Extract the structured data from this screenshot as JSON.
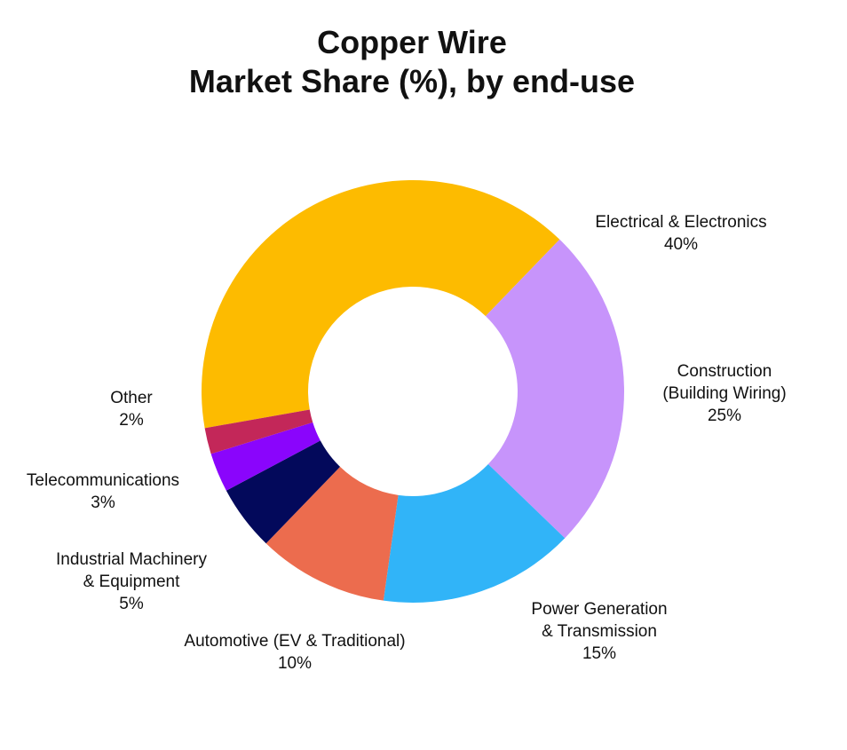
{
  "chart_data": {
    "type": "pie",
    "donut": true,
    "title_lines": [
      "Copper Wire",
      "Market Share (%), by end-use"
    ],
    "slices": [
      {
        "label_lines": [
          "Electrical & Electronics"
        ],
        "value": 40,
        "value_text": "40%",
        "color": "#FDBB00"
      },
      {
        "label_lines": [
          "Construction",
          "(Building Wiring)"
        ],
        "value": 25,
        "value_text": "25%",
        "color": "#C794FB"
      },
      {
        "label_lines": [
          "Power Generation",
          "& Transmission"
        ],
        "value": 15,
        "value_text": "15%",
        "color": "#31B4F8"
      },
      {
        "label_lines": [
          "Automotive (EV & Traditional)"
        ],
        "value": 10,
        "value_text": "10%",
        "color": "#EC6C4E"
      },
      {
        "label_lines": [
          "Industrial Machinery",
          "& Equipment"
        ],
        "value": 5,
        "value_text": "5%",
        "color": "#03095B"
      },
      {
        "label_lines": [
          "Telecommunications"
        ],
        "value": 3,
        "value_text": "3%",
        "color": "#8A05FC"
      },
      {
        "label_lines": [
          "Other"
        ],
        "value": 2,
        "value_text": "2%",
        "color": "#C32759"
      }
    ]
  }
}
